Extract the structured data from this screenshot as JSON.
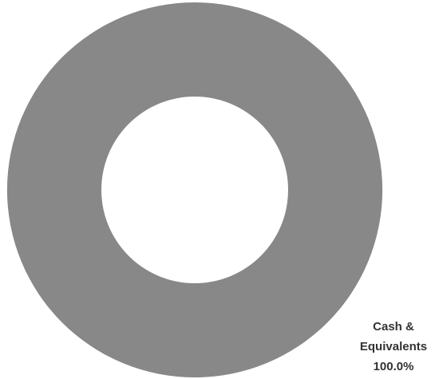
{
  "chart_data": {
    "type": "donut",
    "categories": [
      "Cash & Equivalents"
    ],
    "values": [
      100
    ],
    "value_labels": [
      "100.0%"
    ],
    "colors": [
      "#878887"
    ]
  }
}
